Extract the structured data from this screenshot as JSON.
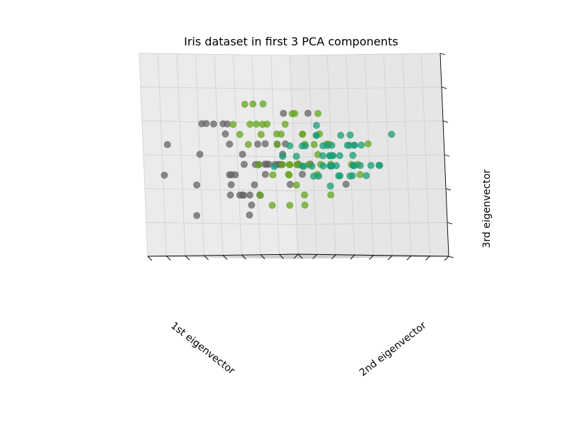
{
  "chart_data": {
    "type": "scatter",
    "projection": "3d",
    "title": "Iris dataset in first 3 PCA components",
    "xlabel": "1st eigenvector",
    "ylabel": "2nd eigenvector",
    "zlabel": "3rd eigenvector",
    "grid": true,
    "tick_labels": "hidden",
    "xlim": [
      -4,
      4
    ],
    "ylim": [
      -1.5,
      1.5
    ],
    "zlim": [
      -1,
      1
    ],
    "colors": [
      "#1b9e77",
      "#66a61e",
      "#666666"
    ],
    "series": [
      {
        "color": "#1b9e77",
        "points": [
          [
            -2.7,
            0.3,
            0.0
          ],
          [
            -2.7,
            -0.2,
            0.1
          ],
          [
            -2.9,
            -0.1,
            -0.1
          ],
          [
            -2.7,
            -0.3,
            -0.1
          ],
          [
            -2.7,
            0.3,
            -0.1
          ],
          [
            -2.3,
            0.7,
            -0.1
          ],
          [
            -2.8,
            -0.1,
            -0.2
          ],
          [
            -2.6,
            0.2,
            0.0
          ],
          [
            -2.9,
            -0.6,
            -0.1
          ],
          [
            -2.7,
            -0.1,
            0.1
          ],
          [
            -2.5,
            0.7,
            0.1
          ],
          [
            -2.6,
            0.1,
            -0.2
          ],
          [
            -2.8,
            -0.3,
            0.1
          ],
          [
            -3.2,
            -0.5,
            -0.1
          ],
          [
            -2.6,
            1.2,
            0.0
          ],
          [
            -2.4,
            1.3,
            -0.1
          ],
          [
            -2.6,
            0.8,
            0.1
          ],
          [
            -2.7,
            0.3,
            0.0
          ],
          [
            -2.2,
            0.9,
            0.1
          ],
          [
            -2.6,
            0.5,
            -0.2
          ],
          [
            -2.3,
            0.4,
            0.2
          ],
          [
            -2.6,
            0.4,
            -0.1
          ],
          [
            -3.2,
            0.1,
            -0.2
          ],
          [
            -2.3,
            0.1,
            0.1
          ],
          [
            -2.4,
            0.0,
            -0.2
          ],
          [
            -2.5,
            -0.2,
            0.2
          ],
          [
            -2.5,
            0.1,
            -0.1
          ],
          [
            -2.6,
            0.4,
            0.0
          ],
          [
            -2.6,
            0.3,
            0.1
          ],
          [
            -2.6,
            -0.2,
            -0.1
          ],
          [
            -2.6,
            -0.2,
            0.0
          ],
          [
            -2.3,
            0.4,
            0.2
          ],
          [
            -2.9,
            0.9,
            -0.1
          ],
          [
            -2.8,
            1.0,
            0.0
          ],
          [
            -2.6,
            -0.1,
            0.1
          ],
          [
            -2.8,
            0.1,
            0.2
          ],
          [
            -2.6,
            0.5,
            0.3
          ],
          [
            -3.0,
            0.4,
            -0.1
          ],
          [
            -3.0,
            -0.4,
            -0.1
          ],
          [
            -2.6,
            0.2,
            0.0
          ],
          [
            -2.8,
            0.3,
            -0.1
          ],
          [
            -2.3,
            -1.1,
            0.2
          ],
          [
            -3.0,
            -0.3,
            -0.2
          ],
          [
            -2.4,
            0.2,
            -0.3
          ],
          [
            -2.6,
            0.6,
            -0.2
          ],
          [
            -2.7,
            -0.2,
            0.1
          ],
          [
            -2.8,
            0.7,
            -0.1
          ],
          [
            -2.9,
            -0.1,
            -0.1
          ],
          [
            -2.9,
            0.5,
            0.1
          ],
          [
            -2.7,
            0.1,
            0.0
          ]
        ]
      },
      {
        "color": "#66a61e",
        "points": [
          [
            1.3,
            0.7,
            0.3
          ],
          [
            0.9,
            0.3,
            0.2
          ],
          [
            1.5,
            0.5,
            0.2
          ],
          [
            0.2,
            -0.8,
            -0.1
          ],
          [
            1.1,
            0.1,
            0.3
          ],
          [
            0.6,
            -0.4,
            -0.4
          ],
          [
            1.1,
            0.3,
            -0.1
          ],
          [
            -0.8,
            -1.0,
            -0.2
          ],
          [
            1.0,
            0.2,
            0.5
          ],
          [
            0.0,
            -0.7,
            -0.4
          ],
          [
            -0.5,
            -1.3,
            0.1
          ],
          [
            0.5,
            -0.1,
            -0.1
          ],
          [
            0.5,
            -0.7,
            0.4
          ],
          [
            0.9,
            -0.1,
            -0.1
          ],
          [
            -0.3,
            -0.3,
            0.1
          ],
          [
            0.9,
            0.6,
            0.5
          ],
          [
            0.6,
            -0.1,
            -0.5
          ],
          [
            0.3,
            -0.3,
            0.2
          ],
          [
            1.2,
            -0.5,
            0.4
          ],
          [
            0.2,
            -0.6,
            0.2
          ],
          [
            1.0,
            0.1,
            -0.5
          ],
          [
            0.4,
            -0.0,
            0.3
          ],
          [
            1.4,
            -0.2,
            0.2
          ],
          [
            0.9,
            -0.1,
            0.2
          ],
          [
            0.8,
            0.3,
            0.3
          ],
          [
            1.0,
            0.4,
            0.5
          ],
          [
            1.4,
            0.2,
            0.3
          ],
          [
            1.6,
            0.3,
            0.1
          ],
          [
            0.8,
            -0.2,
            -0.1
          ],
          [
            -0.2,
            -0.4,
            0.0
          ],
          [
            0.1,
            -0.7,
            0.1
          ],
          [
            0.0,
            -0.7,
            0.1
          ],
          [
            0.2,
            -0.3,
            0.1
          ],
          [
            1.4,
            -0.4,
            -0.2
          ],
          [
            0.6,
            -0.4,
            -0.5
          ],
          [
            0.8,
            0.4,
            -0.4
          ],
          [
            1.2,
            0.4,
            0.3
          ],
          [
            0.8,
            -0.3,
            0.4
          ],
          [
            0.2,
            -0.1,
            -0.3
          ],
          [
            0.2,
            -0.6,
            -0.1
          ],
          [
            0.4,
            -0.6,
            -0.2
          ],
          [
            0.9,
            0.1,
            -0.2
          ],
          [
            0.3,
            -0.3,
            0.2
          ],
          [
            -0.7,
            -1.0,
            -0.1
          ],
          [
            0.3,
            -0.4,
            -0.1
          ],
          [
            0.3,
            -0.0,
            -0.2
          ],
          [
            0.4,
            -0.2,
            -0.1
          ],
          [
            0.6,
            0.1,
            0.1
          ],
          [
            -0.9,
            -0.8,
            -0.1
          ],
          [
            0.3,
            -0.2,
            -0.1
          ]
        ]
      },
      {
        "color": "#666666",
        "points": [
          [
            2.5,
            0.0,
            -0.6
          ],
          [
            1.4,
            -0.6,
            -0.1
          ],
          [
            2.6,
            0.3,
            0.1
          ],
          [
            2.0,
            -0.2,
            -0.1
          ],
          [
            2.4,
            0.1,
            -0.1
          ],
          [
            3.4,
            0.6,
            0.0
          ],
          [
            0.5,
            -1.2,
            -0.3
          ],
          [
            2.9,
            0.3,
            0.3
          ],
          [
            2.3,
            -0.3,
            0.1
          ],
          [
            2.9,
            0.9,
            -0.6
          ],
          [
            1.7,
            0.4,
            -0.4
          ],
          [
            1.9,
            -0.2,
            -0.1
          ],
          [
            2.2,
            0.2,
            0.0
          ],
          [
            1.3,
            -0.8,
            -0.1
          ],
          [
            1.6,
            -0.5,
            -0.3
          ],
          [
            1.9,
            0.1,
            -0.3
          ],
          [
            1.9,
            0.0,
            0.1
          ],
          [
            3.5,
            1.2,
            0.1
          ],
          [
            3.8,
            0.3,
            0.3
          ],
          [
            1.3,
            -0.8,
            0.4
          ],
          [
            2.4,
            0.4,
            -0.2
          ],
          [
            1.2,
            -0.6,
            -0.2
          ],
          [
            3.5,
            0.5,
            0.3
          ],
          [
            1.4,
            -0.2,
            -0.1
          ],
          [
            2.3,
            0.4,
            -0.2
          ],
          [
            2.6,
            0.6,
            0.3
          ],
          [
            1.3,
            -0.2,
            -0.1
          ],
          [
            1.3,
            -0.1,
            -0.1
          ],
          [
            2.1,
            -0.2,
            -0.1
          ],
          [
            2.4,
            0.4,
            0.3
          ],
          [
            2.8,
            0.3,
            0.2
          ],
          [
            3.2,
            1.4,
            -0.2
          ],
          [
            2.1,
            -0.2,
            -0.2
          ],
          [
            1.4,
            -0.2,
            0.1
          ],
          [
            1.8,
            -0.5,
            0.4
          ],
          [
            3.1,
            0.8,
            -0.3
          ],
          [
            2.1,
            0.1,
            -0.5
          ],
          [
            1.9,
            0.0,
            -0.1
          ],
          [
            1.2,
            -0.2,
            -0.1
          ],
          [
            2.1,
            0.4,
            -0.2
          ],
          [
            2.3,
            0.2,
            -0.4
          ],
          [
            1.9,
            0.4,
            -0.4
          ],
          [
            1.4,
            -0.6,
            -0.1
          ],
          [
            2.6,
            0.3,
            -0.3
          ],
          [
            2.4,
            0.4,
            -0.4
          ],
          [
            1.9,
            0.2,
            -0.4
          ],
          [
            1.5,
            -0.4,
            0.1
          ],
          [
            1.8,
            0.1,
            -0.1
          ],
          [
            1.9,
            0.0,
            -0.4
          ],
          [
            1.4,
            -0.3,
            0.0
          ]
        ]
      }
    ]
  }
}
